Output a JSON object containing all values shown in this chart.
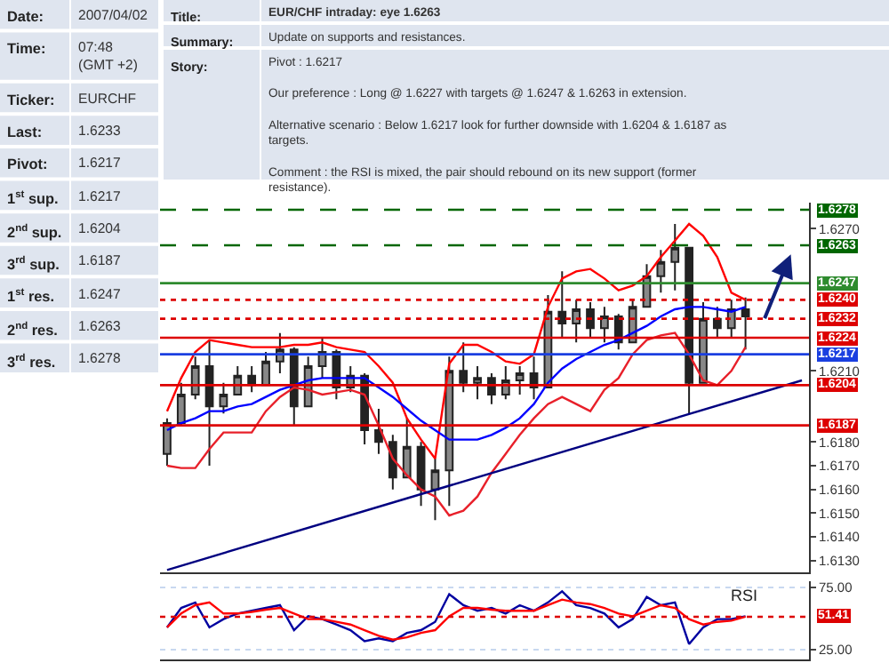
{
  "chart_data": [
    {
      "type": "candlestick",
      "tick_labels": "y",
      "annotations": [
        "Date:",
        "2007/04/02",
        "Time:",
        "07:48\n(GMT +2)",
        "Ticker:",
        "EURCHF",
        "Last:",
        "1.6233",
        "Pivot:",
        "1.6217",
        "1$^{st}$ sup.",
        "1.6217",
        "2$^{nd}$ sup.",
        "1.6204",
        "3$^{rd}$ sup.",
        "1.6187",
        "1$^{st}$ res.",
        "1.6247",
        "2$^{nd}$ res.",
        "1.6263",
        "3$^{rd}$ res.",
        "1.6278",
        "Title:",
        "EUR/CHF intraday: eye 1.6263",
        "Summary:",
        "Update on supports and resistances.",
        "Story:",
        "Pivot : 1.6217\n\nOur preference : Long @ 1.6227 with targets @ 1.6247 & 1.6263 in extension.\n\nAlternative scenario : Below 1.6217 look for further downside with 1.6204 & 1.6187 as targets.\n\nComment : the RSI is mixed, the pair should rebound on its new support (former resistance)."
      ],
      "categories": [
        null,
        null,
        null,
        null,
        null,
        null,
        null,
        null,
        null,
        null,
        null,
        null,
        null,
        null,
        null,
        null,
        null,
        null,
        null,
        null,
        null,
        null,
        null,
        null,
        null,
        null,
        null,
        null,
        null,
        null,
        null,
        null,
        null,
        null,
        null,
        null,
        null,
        null,
        null,
        null,
        null,
        null,
        null,
        null,
        null,
        null
      ],
      "ohlc": [
        [
          1.6175,
          1.619,
          1.617,
          1.6188
        ],
        [
          1.6188,
          1.6205,
          1.6187,
          1.62
        ],
        [
          1.62,
          1.6216,
          1.6198,
          1.6212
        ],
        [
          1.6212,
          1.6223,
          1.617,
          1.6195
        ],
        [
          1.6195,
          1.6205,
          1.6192,
          1.62
        ],
        [
          1.62,
          1.6212,
          1.62,
          1.6208
        ],
        [
          1.6208,
          1.6212,
          1.6201,
          1.6204
        ],
        [
          1.6204,
          1.6218,
          1.6204,
          1.6214
        ],
        [
          1.6214,
          1.6226,
          1.6209,
          1.6219
        ],
        [
          1.6219,
          1.622,
          1.6187,
          1.6195
        ],
        [
          1.6195,
          1.6216,
          1.6195,
          1.6212
        ],
        [
          1.6212,
          1.6224,
          1.6207,
          1.6218
        ],
        [
          1.6218,
          1.6219,
          1.6198,
          1.6203
        ],
        [
          1.6203,
          1.6212,
          1.6201,
          1.6208
        ],
        [
          1.6208,
          1.6209,
          1.6179,
          1.6185
        ],
        [
          1.6185,
          1.6194,
          1.6175,
          1.618
        ],
        [
          1.618,
          1.6183,
          1.616,
          1.6165
        ],
        [
          1.6165,
          1.619,
          1.6165,
          1.6178
        ],
        [
          1.6178,
          1.618,
          1.6153,
          1.616
        ],
        [
          1.616,
          1.6173,
          1.6147,
          1.6168
        ],
        [
          1.6168,
          1.6216,
          1.6153,
          1.621
        ],
        [
          1.621,
          1.6222,
          1.6201,
          1.6205
        ],
        [
          1.6205,
          1.6212,
          1.6198,
          1.6207
        ],
        [
          1.6207,
          1.6209,
          1.6196,
          1.62
        ],
        [
          1.62,
          1.6212,
          1.6198,
          1.6206
        ],
        [
          1.6206,
          1.6212,
          1.62,
          1.6209
        ],
        [
          1.6209,
          1.6216,
          1.6198,
          1.6203
        ],
        [
          1.6203,
          1.6242,
          1.6203,
          1.6235
        ],
        [
          1.6235,
          1.6252,
          1.6224,
          1.623
        ],
        [
          1.623,
          1.624,
          1.6222,
          1.6236
        ],
        [
          1.6236,
          1.6239,
          1.6224,
          1.6228
        ],
        [
          1.6228,
          1.6237,
          1.6222,
          1.6233
        ],
        [
          1.6233,
          1.6234,
          1.6219,
          1.6222
        ],
        [
          1.6222,
          1.624,
          1.6222,
          1.6237
        ],
        [
          1.6237,
          1.6255,
          1.6237,
          1.625
        ],
        [
          1.625,
          1.6261,
          1.6243,
          1.6256
        ],
        [
          1.6256,
          1.6272,
          1.6244,
          1.6262
        ],
        [
          1.6262,
          1.6262,
          1.6192,
          1.6205
        ],
        [
          1.6205,
          1.6239,
          1.6205,
          1.6232
        ],
        [
          1.6232,
          1.6237,
          1.6224,
          1.6228
        ],
        [
          1.6228,
          1.624,
          1.6224,
          1.6236
        ],
        [
          1.6236,
          1.6241,
          1.6219,
          1.6233
        ],
        null,
        null,
        null,
        null
      ],
      "series": [
        {
          "type": "line",
          "color": "#ff0000",
          "values": [
            1.6193,
            1.6207,
            1.6218,
            1.6223,
            1.6222,
            1.6221,
            1.622,
            1.622,
            1.622,
            1.6221,
            1.6221,
            1.6222,
            1.622,
            1.6219,
            1.6218,
            1.6212,
            1.6205,
            1.619,
            1.6181,
            1.6173,
            1.6213,
            1.6221,
            1.6221,
            1.6218,
            1.6214,
            1.6213,
            1.6217,
            1.6237,
            1.6249,
            1.6252,
            1.6253,
            1.6249,
            1.6244,
            1.6246,
            1.625,
            1.6258,
            1.6265,
            1.6272,
            1.6267,
            1.6258,
            1.6243,
            1.624,
            null,
            null,
            null,
            null
          ]
        },
        {
          "type": "line",
          "color": "#e8202a",
          "values": [
            1.617,
            1.6169,
            1.6169,
            1.6177,
            1.6184,
            1.6184,
            1.6184,
            1.6193,
            1.6199,
            1.6203,
            1.6202,
            1.62,
            1.6201,
            1.6202,
            1.62,
            1.6187,
            1.6173,
            1.6166,
            1.616,
            1.6157,
            1.6149,
            1.6151,
            1.6157,
            1.6167,
            1.6175,
            1.6183,
            1.619,
            1.6196,
            1.6199,
            1.6196,
            1.6193,
            1.6202,
            1.6207,
            1.6217,
            1.6223,
            1.6225,
            1.6226,
            1.6217,
            1.6206,
            1.6204,
            1.621,
            1.622,
            null,
            null,
            null,
            null
          ]
        },
        {
          "type": "line",
          "color": "#0000ff",
          "values": [
            1.6185,
            1.6188,
            1.619,
            1.6193,
            1.6193,
            1.6195,
            1.6196,
            1.6199,
            1.6202,
            1.6204,
            1.6206,
            1.6207,
            1.6207,
            1.6207,
            1.6207,
            1.6203,
            1.6199,
            1.6194,
            1.6189,
            1.6185,
            1.6181,
            1.6181,
            1.6181,
            1.6183,
            1.6186,
            1.619,
            1.6196,
            1.6205,
            1.6211,
            1.6215,
            1.6218,
            1.6221,
            1.6223,
            1.6226,
            1.6229,
            1.6233,
            1.6236,
            1.6237,
            1.6237,
            1.6236,
            1.6235,
            1.6237,
            null,
            null,
            null,
            null
          ]
        },
        {
          "type": "line",
          "color": "#000080",
          "values": [
            1.6126,
            null,
            null,
            null,
            null,
            null,
            null,
            null,
            null,
            null,
            null,
            null,
            null,
            null,
            null,
            null,
            null,
            null,
            null,
            null,
            null,
            null,
            null,
            null,
            null,
            null,
            null,
            null,
            null,
            null,
            null,
            null,
            null,
            null,
            null,
            null,
            null,
            null,
            null,
            null,
            null,
            null,
            null,
            null,
            null,
            1.6206
          ]
        }
      ],
      "ylim": [
        1.6125,
        1.6281
      ],
      "yticks": [
        {
          "value": 1.627,
          "label": "1.6270"
        },
        {
          "value": 1.621,
          "label": "1.6210"
        },
        {
          "value": 1.618,
          "label": "1.6180"
        },
        {
          "value": 1.617,
          "label": "1.6170"
        },
        {
          "value": 1.616,
          "label": "1.6160"
        },
        {
          "value": 1.615,
          "label": "1.6150"
        },
        {
          "value": 1.614,
          "label": "1.6140"
        },
        {
          "value": 1.613,
          "label": "1.6130"
        }
      ],
      "ref_lines": [
        {
          "axis": "y",
          "value": 1.6278,
          "label": "1.6278",
          "color": "#006600",
          "line_style": "dashed"
        },
        {
          "axis": "y",
          "value": 1.6263,
          "label": "1.6263",
          "color": "#006600",
          "line_style": "dashed"
        },
        {
          "axis": "y",
          "value": 1.6247,
          "label": "1.6247",
          "color": "#2e8b2e",
          "line_style": "solid"
        },
        {
          "axis": "y",
          "value": 1.624,
          "label": "1.6240",
          "color": "#dd0000",
          "line_style": "dotted"
        },
        {
          "axis": "y",
          "value": 1.6232,
          "label": "1.6232",
          "color": "#dd0000",
          "line_style": "dotted"
        },
        {
          "axis": "y",
          "value": 1.6224,
          "label": "1.6224",
          "color": "#dd0000",
          "line_style": "solid"
        },
        {
          "axis": "y",
          "value": 1.6217,
          "label": "1.6217",
          "color": "#1a3fe0",
          "line_style": "solid"
        },
        {
          "axis": "y",
          "value": 1.6204,
          "label": "1.6204",
          "color": "#dd0000",
          "line_style": "solid"
        },
        {
          "axis": "y",
          "value": 1.6187,
          "label": "1.6187",
          "color": "#dd0000",
          "line_style": "solid"
        }
      ]
    },
    {
      "type": "line",
      "tick_labels": "y",
      "grid": "y",
      "categories": [
        null,
        null,
        null,
        null,
        null,
        null,
        null,
        null,
        null,
        null,
        null,
        null,
        null,
        null,
        null,
        null,
        null,
        null,
        null,
        null,
        null,
        null,
        null,
        null,
        null,
        null,
        null,
        null,
        null,
        null,
        null,
        null,
        null,
        null,
        null,
        null,
        null,
        null,
        null,
        null,
        null,
        null,
        null,
        null,
        null,
        null
      ],
      "series": [
        {
          "color": "#0000a0",
          "values": [
            42.8,
            58.5,
            62.9,
            42.8,
            49.5,
            54.0,
            56.2,
            58.5,
            60.7,
            40.6,
            51.8,
            49.5,
            45.1,
            40.6,
            31.7,
            34.0,
            31.7,
            38.4,
            40.6,
            47.3,
            69.6,
            60.7,
            56.2,
            58.5,
            54.0,
            60.7,
            56.2,
            62.9,
            71.9,
            60.7,
            58.5,
            54.0,
            42.8,
            49.5,
            67.4,
            60.7,
            62.9,
            29.4,
            42.8,
            49.5,
            49.5,
            51.8,
            null,
            null,
            null,
            null
          ]
        },
        {
          "color": "#ff0000",
          "values": [
            42.8,
            54.0,
            60.7,
            62.9,
            54.0,
            54.0,
            55.3,
            57.1,
            58.5,
            54.0,
            49.5,
            49.5,
            47.3,
            45.1,
            40.6,
            36.1,
            33.0,
            34.8,
            38.4,
            40.6,
            51.8,
            58.5,
            58.5,
            57.1,
            56.2,
            56.2,
            56.2,
            60.7,
            65.2,
            62.9,
            61.6,
            58.5,
            54.0,
            51.8,
            56.2,
            60.7,
            58.5,
            49.5,
            45.1,
            47.3,
            48.2,
            51.41,
            null,
            null,
            null,
            null
          ]
        }
      ],
      "ylim": [
        17,
        80
      ],
      "yticks": [
        {
          "value": 75,
          "label": "75.00"
        },
        {
          "value": 25,
          "label": "25.00"
        }
      ],
      "ref_lines": [
        {
          "axis": "y",
          "value": 51.41,
          "label": "51.41",
          "color": "#dd0000",
          "line_style": "dotted"
        }
      ],
      "annotations": [
        "RSI"
      ]
    }
  ]
}
